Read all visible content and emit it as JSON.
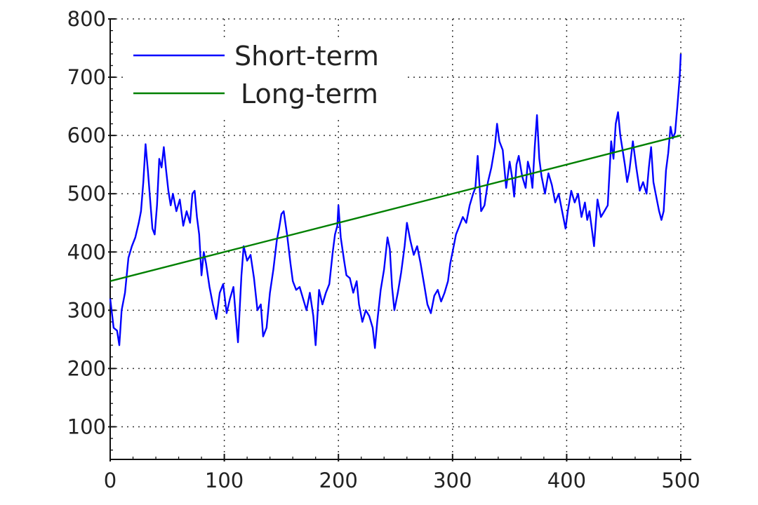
{
  "chart_data": {
    "type": "line",
    "title": "",
    "xlabel": "",
    "ylabel": "",
    "xlim": [
      0,
      500
    ],
    "ylim": [
      50,
      800
    ],
    "xticks": [
      0,
      100,
      200,
      300,
      400,
      500
    ],
    "yticks": [
      100,
      200,
      300,
      400,
      500,
      600,
      700,
      800
    ],
    "xtick_labels": [
      "0",
      "100",
      "200",
      "300",
      "400",
      "500"
    ],
    "ytick_labels": [
      "100",
      "200",
      "300",
      "400",
      "500",
      "600",
      "700",
      "800"
    ],
    "grid": true,
    "legend_position": "top-left",
    "series": [
      {
        "name": "Short-term",
        "color": "#0000ff",
        "points": [
          [
            0,
            320
          ],
          [
            3,
            270
          ],
          [
            6,
            265
          ],
          [
            8,
            240
          ],
          [
            10,
            300
          ],
          [
            13,
            330
          ],
          [
            16,
            390
          ],
          [
            19,
            410
          ],
          [
            22,
            425
          ],
          [
            25,
            450
          ],
          [
            27,
            470
          ],
          [
            29,
            520
          ],
          [
            31,
            585
          ],
          [
            33,
            540
          ],
          [
            35,
            490
          ],
          [
            37,
            440
          ],
          [
            39,
            430
          ],
          [
            41,
            480
          ],
          [
            43,
            560
          ],
          [
            45,
            545
          ],
          [
            47,
            580
          ],
          [
            49,
            540
          ],
          [
            51,
            505
          ],
          [
            53,
            480
          ],
          [
            55,
            500
          ],
          [
            58,
            470
          ],
          [
            61,
            490
          ],
          [
            64,
            445
          ],
          [
            67,
            470
          ],
          [
            70,
            450
          ],
          [
            72,
            500
          ],
          [
            74,
            505
          ],
          [
            76,
            460
          ],
          [
            78,
            430
          ],
          [
            80,
            360
          ],
          [
            82,
            400
          ],
          [
            84,
            380
          ],
          [
            87,
            340
          ],
          [
            90,
            310
          ],
          [
            93,
            285
          ],
          [
            96,
            330
          ],
          [
            99,
            345
          ],
          [
            102,
            295
          ],
          [
            105,
            320
          ],
          [
            108,
            340
          ],
          [
            110,
            290
          ],
          [
            112,
            245
          ],
          [
            115,
            360
          ],
          [
            117,
            410
          ],
          [
            120,
            385
          ],
          [
            123,
            395
          ],
          [
            126,
            355
          ],
          [
            129,
            300
          ],
          [
            132,
            310
          ],
          [
            134,
            255
          ],
          [
            137,
            270
          ],
          [
            140,
            330
          ],
          [
            143,
            370
          ],
          [
            146,
            420
          ],
          [
            148,
            440
          ],
          [
            150,
            465
          ],
          [
            152,
            470
          ],
          [
            155,
            430
          ],
          [
            158,
            380
          ],
          [
            160,
            350
          ],
          [
            163,
            335
          ],
          [
            166,
            340
          ],
          [
            169,
            320
          ],
          [
            172,
            300
          ],
          [
            175,
            330
          ],
          [
            178,
            290
          ],
          [
            180,
            240
          ],
          [
            183,
            335
          ],
          [
            186,
            310
          ],
          [
            189,
            330
          ],
          [
            192,
            345
          ],
          [
            195,
            400
          ],
          [
            197,
            430
          ],
          [
            199,
            445
          ],
          [
            200,
            480
          ],
          [
            202,
            425
          ],
          [
            205,
            385
          ],
          [
            207,
            360
          ],
          [
            210,
            355
          ],
          [
            213,
            330
          ],
          [
            216,
            350
          ],
          [
            218,
            310
          ],
          [
            221,
            280
          ],
          [
            224,
            300
          ],
          [
            227,
            290
          ],
          [
            230,
            270
          ],
          [
            232,
            235
          ],
          [
            234,
            280
          ],
          [
            237,
            335
          ],
          [
            240,
            370
          ],
          [
            243,
            425
          ],
          [
            245,
            405
          ],
          [
            247,
            340
          ],
          [
            249,
            300
          ],
          [
            252,
            330
          ],
          [
            255,
            365
          ],
          [
            258,
            410
          ],
          [
            260,
            450
          ],
          [
            263,
            420
          ],
          [
            266,
            395
          ],
          [
            269,
            410
          ],
          [
            272,
            380
          ],
          [
            275,
            345
          ],
          [
            278,
            310
          ],
          [
            281,
            295
          ],
          [
            284,
            325
          ],
          [
            287,
            335
          ],
          [
            290,
            315
          ],
          [
            293,
            330
          ],
          [
            296,
            350
          ],
          [
            298,
            380
          ],
          [
            300,
            400
          ],
          [
            303,
            430
          ],
          [
            306,
            445
          ],
          [
            309,
            460
          ],
          [
            312,
            450
          ],
          [
            315,
            480
          ],
          [
            318,
            500
          ],
          [
            320,
            510
          ],
          [
            322,
            565
          ],
          [
            325,
            470
          ],
          [
            328,
            480
          ],
          [
            331,
            520
          ],
          [
            334,
            545
          ],
          [
            337,
            580
          ],
          [
            339,
            620
          ],
          [
            341,
            590
          ],
          [
            344,
            575
          ],
          [
            347,
            510
          ],
          [
            350,
            555
          ],
          [
            352,
            530
          ],
          [
            354,
            495
          ],
          [
            356,
            550
          ],
          [
            358,
            565
          ],
          [
            361,
            530
          ],
          [
            364,
            510
          ],
          [
            366,
            555
          ],
          [
            368,
            540
          ],
          [
            370,
            510
          ],
          [
            372,
            580
          ],
          [
            374,
            635
          ],
          [
            376,
            560
          ],
          [
            378,
            530
          ],
          [
            381,
            500
          ],
          [
            384,
            535
          ],
          [
            387,
            515
          ],
          [
            390,
            485
          ],
          [
            393,
            500
          ],
          [
            396,
            470
          ],
          [
            399,
            440
          ],
          [
            401,
            470
          ],
          [
            404,
            505
          ],
          [
            407,
            485
          ],
          [
            410,
            500
          ],
          [
            413,
            460
          ],
          [
            416,
            485
          ],
          [
            418,
            455
          ],
          [
            420,
            470
          ],
          [
            422,
            440
          ],
          [
            424,
            410
          ],
          [
            427,
            490
          ],
          [
            430,
            460
          ],
          [
            433,
            470
          ],
          [
            436,
            480
          ],
          [
            439,
            590
          ],
          [
            441,
            560
          ],
          [
            443,
            620
          ],
          [
            445,
            640
          ],
          [
            447,
            600
          ],
          [
            449,
            575
          ],
          [
            451,
            550
          ],
          [
            453,
            520
          ],
          [
            455,
            540
          ],
          [
            458,
            590
          ],
          [
            461,
            545
          ],
          [
            464,
            505
          ],
          [
            467,
            520
          ],
          [
            470,
            500
          ],
          [
            472,
            545
          ],
          [
            474,
            580
          ],
          [
            476,
            520
          ],
          [
            478,
            500
          ],
          [
            481,
            470
          ],
          [
            483,
            455
          ],
          [
            485,
            470
          ],
          [
            487,
            540
          ],
          [
            489,
            570
          ],
          [
            491,
            615
          ],
          [
            493,
            595
          ],
          [
            495,
            605
          ],
          [
            497,
            650
          ],
          [
            499,
            700
          ],
          [
            500,
            740
          ]
        ]
      },
      {
        "name": "Long-term",
        "color": "#008000",
        "points": [
          [
            0,
            350
          ],
          [
            500,
            600
          ]
        ]
      }
    ]
  }
}
